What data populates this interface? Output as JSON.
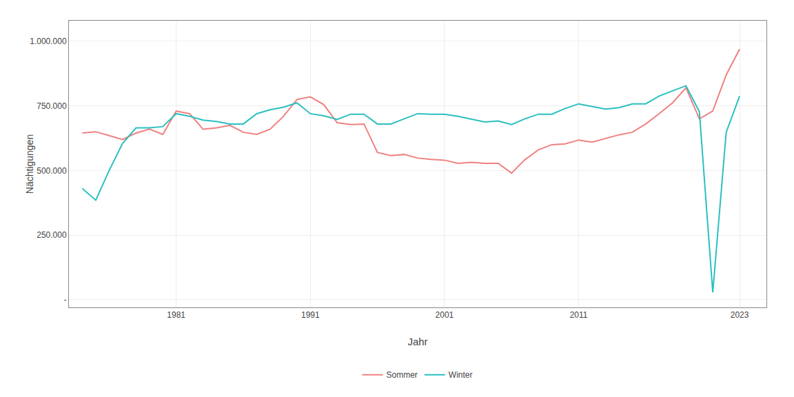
{
  "chart_data": {
    "type": "line",
    "xlabel": "Jahr",
    "ylabel": "Nächtigungen",
    "x": [
      1974,
      1975,
      1976,
      1977,
      1978,
      1979,
      1980,
      1981,
      1982,
      1983,
      1984,
      1985,
      1986,
      1987,
      1988,
      1989,
      1990,
      1991,
      1992,
      1993,
      1994,
      1995,
      1996,
      1997,
      1998,
      1999,
      2000,
      2001,
      2002,
      2003,
      2004,
      2005,
      2006,
      2007,
      2008,
      2009,
      2010,
      2011,
      2012,
      2013,
      2014,
      2015,
      2016,
      2017,
      2018,
      2019,
      2020,
      2021,
      2022,
      2023
    ],
    "series": [
      {
        "name": "Sommer",
        "color": "#F08080",
        "values": [
          645000,
          650000,
          635000,
          620000,
          645000,
          660000,
          640000,
          730000,
          720000,
          660000,
          665000,
          675000,
          648000,
          640000,
          660000,
          710000,
          775000,
          785000,
          755000,
          685000,
          678000,
          680000,
          570000,
          558000,
          562000,
          548000,
          543000,
          540000,
          528000,
          532000,
          528000,
          528000,
          490000,
          542000,
          580000,
          600000,
          603000,
          618000,
          610000,
          624000,
          638000,
          648000,
          680000,
          720000,
          762000,
          820000,
          700000,
          730000,
          870000,
          970000
        ]
      },
      {
        "name": "Winter",
        "color": "#2ABFBF",
        "values": [
          430000,
          385000,
          500000,
          605000,
          665000,
          665000,
          670000,
          720000,
          710000,
          695000,
          690000,
          680000,
          680000,
          720000,
          735000,
          745000,
          762000,
          720000,
          712000,
          698000,
          718000,
          718000,
          680000,
          680000,
          700000,
          720000,
          718000,
          718000,
          710000,
          698000,
          688000,
          692000,
          678000,
          700000,
          718000,
          718000,
          740000,
          758000,
          748000,
          738000,
          743000,
          758000,
          758000,
          788000,
          808000,
          828000,
          728000,
          28000,
          648000,
          788000
        ]
      }
    ],
    "xlim": [
      1973,
      2025
    ],
    "xticks": [
      1981,
      1991,
      2001,
      2011,
      2023
    ],
    "ylim": [
      -30000,
      1080000
    ],
    "yticks": [
      {
        "value": 0,
        "label": "-"
      },
      {
        "value": 250000,
        "label": "250.000"
      },
      {
        "value": 500000,
        "label": "500.000"
      },
      {
        "value": 750000,
        "label": "750.000"
      },
      {
        "value": 1000000,
        "label": "1.000.000"
      }
    ],
    "grid": true,
    "legend": "bottom"
  }
}
